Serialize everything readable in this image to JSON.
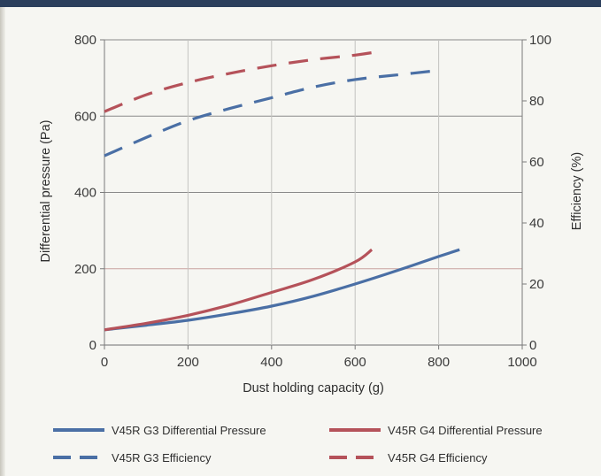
{
  "chart_data": {
    "type": "line",
    "xlabel": "Dust holding capacity (g)",
    "ylabel": "Differential pressure (Pa)",
    "y2label": "Efficiency (%)",
    "xlim": [
      0,
      1000
    ],
    "ylim": [
      0,
      800
    ],
    "y2lim": [
      0,
      100
    ],
    "xticks": [
      "0",
      "200",
      "400",
      "600",
      "800",
      "1000"
    ],
    "yticks": [
      "0",
      "200",
      "400",
      "600",
      "800"
    ],
    "y2ticks": [
      "0",
      "20",
      "40",
      "60",
      "80",
      "100"
    ],
    "grid": true,
    "legend_position": "bottom",
    "series": [
      {
        "name": "V45R G3 Differential Pressure",
        "axis": "left",
        "style": "solid",
        "color": "#4a6fa5",
        "x": [
          0,
          100,
          200,
          300,
          400,
          500,
          600,
          700,
          800,
          850
        ],
        "y": [
          40,
          52,
          65,
          82,
          102,
          128,
          160,
          195,
          232,
          250
        ]
      },
      {
        "name": "V45R G4 Differential Pressure",
        "axis": "left",
        "style": "solid",
        "color": "#b5525a",
        "x": [
          0,
          100,
          200,
          300,
          400,
          500,
          600,
          640
        ],
        "y": [
          40,
          57,
          78,
          105,
          138,
          172,
          218,
          250
        ]
      },
      {
        "name": "V45R G3 Efficiency",
        "axis": "right",
        "style": "dashed",
        "color": "#4a6fa5",
        "x": [
          0,
          100,
          200,
          300,
          400,
          500,
          600,
          700,
          800
        ],
        "y": [
          62,
          68,
          73.5,
          77.5,
          81,
          84.5,
          87,
          88.5,
          90
        ]
      },
      {
        "name": "V45R G4 Efficiency",
        "axis": "right",
        "style": "dashed",
        "color": "#b5525a",
        "x": [
          0,
          100,
          200,
          300,
          400,
          500,
          600,
          650
        ],
        "y": [
          76.5,
          82,
          86,
          89,
          91.5,
          93.5,
          95,
          96
        ]
      }
    ]
  }
}
